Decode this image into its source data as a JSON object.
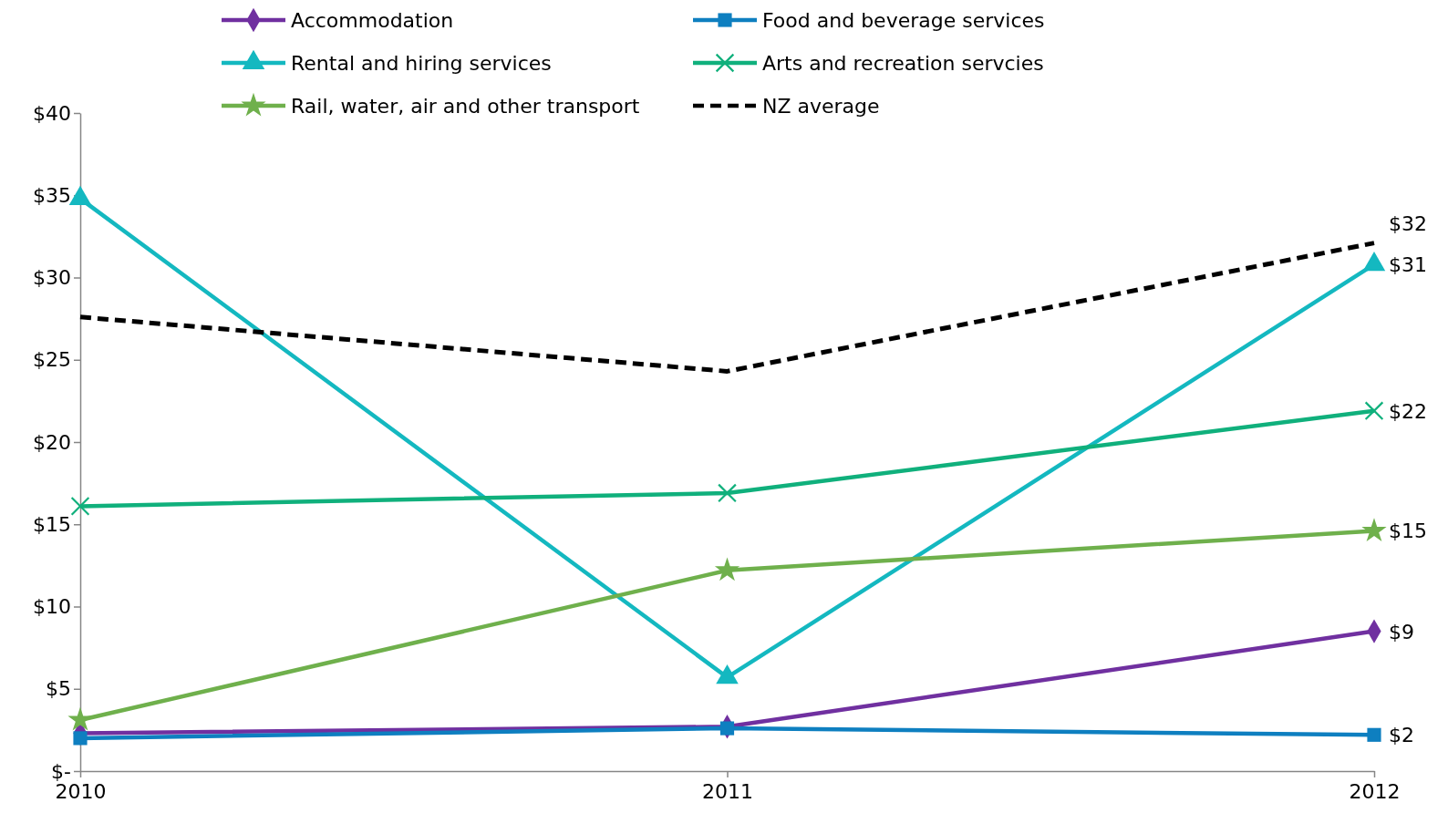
{
  "chart_data": {
    "type": "line",
    "categories": [
      "2010",
      "2011",
      "2012"
    ],
    "ylim": [
      0,
      40
    ],
    "yticks": [
      {
        "value": 0,
        "label": "$-"
      },
      {
        "value": 5,
        "label": "$5"
      },
      {
        "value": 10,
        "label": "$10"
      },
      {
        "value": 15,
        "label": "$15"
      },
      {
        "value": 20,
        "label": "$20"
      },
      {
        "value": 25,
        "label": "$25"
      },
      {
        "value": 30,
        "label": "$30"
      },
      {
        "value": 35,
        "label": "$35"
      },
      {
        "value": 40,
        "label": "$40"
      }
    ],
    "grid": false,
    "legend": "top",
    "series": [
      {
        "name": "Accommodation",
        "color": "#7030a0",
        "marker": "diamond",
        "values": [
          2.3,
          2.7,
          8.5
        ],
        "value_labels": [
          null,
          null,
          "$9"
        ]
      },
      {
        "name": "Food and beverage services",
        "color": "#0e7fc0",
        "marker": "square",
        "values": [
          2.0,
          2.6,
          2.2
        ],
        "value_labels": [
          null,
          null,
          "$2"
        ]
      },
      {
        "name": "Rental and hiring services",
        "color": "#14b8c0",
        "marker": "triangle",
        "values": [
          34.8,
          5.7,
          30.8
        ],
        "value_labels": [
          null,
          null,
          "$31"
        ]
      },
      {
        "name": "Arts and recreation servcies",
        "color": "#10b07c",
        "marker": "cross",
        "values": [
          16.1,
          16.9,
          21.9
        ],
        "value_labels": [
          null,
          null,
          "$22"
        ]
      },
      {
        "name": "Rail, water, air and other transport",
        "color": "#6fb04c",
        "marker": "star",
        "values": [
          3.1,
          12.2,
          14.6
        ],
        "value_labels": [
          null,
          null,
          "$15"
        ]
      },
      {
        "name": "NZ average",
        "color": "#000000",
        "marker": "none",
        "line_style": "dashed",
        "values": [
          27.6,
          24.3,
          32.1
        ],
        "value_labels": [
          null,
          null,
          "$32"
        ]
      }
    ]
  }
}
